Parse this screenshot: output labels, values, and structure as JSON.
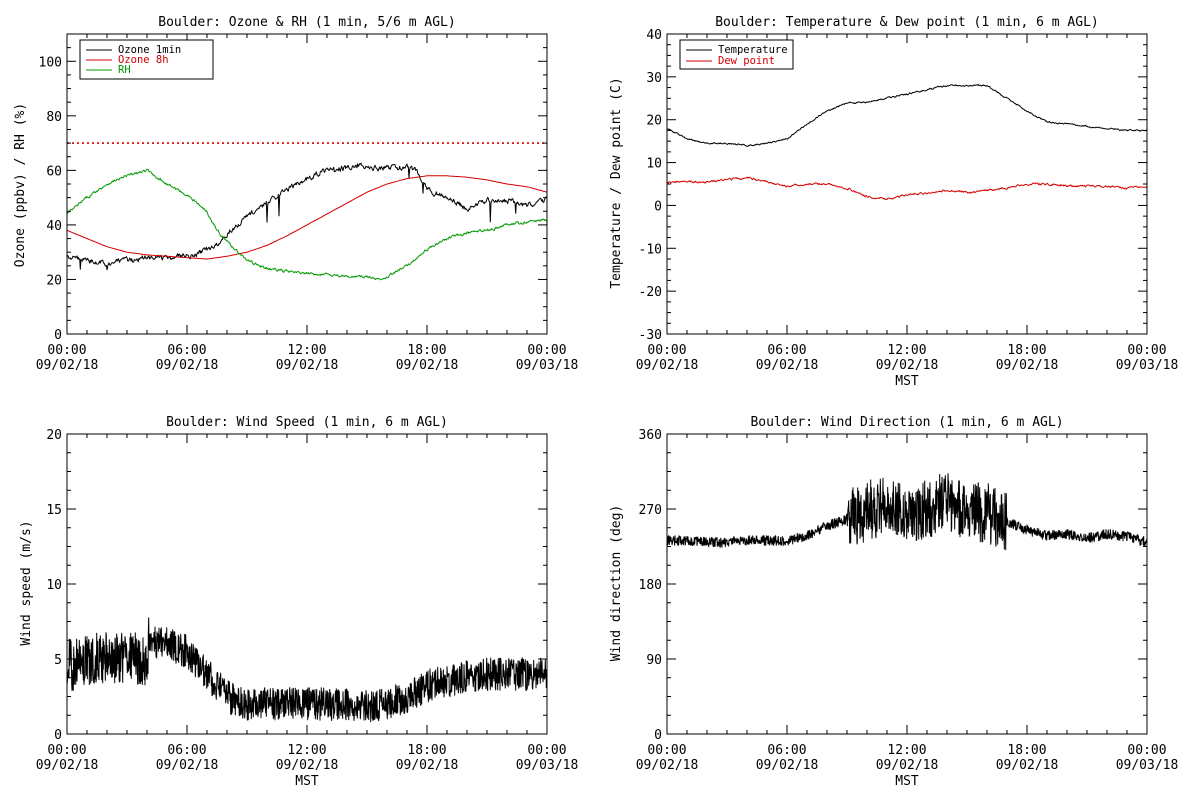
{
  "colors": {
    "black": "#000000",
    "red": "#d40000",
    "green": "#009900",
    "background": "#ffffff"
  },
  "x_ticks": [
    {
      "time": "00:00",
      "date": "09/02/18"
    },
    {
      "time": "06:00",
      "date": "09/02/18"
    },
    {
      "time": "12:00",
      "date": "09/02/18"
    },
    {
      "time": "18:00",
      "date": "09/02/18"
    },
    {
      "time": "00:00",
      "date": "09/03/18"
    }
  ],
  "chart_data": [
    {
      "type": "line",
      "title": "Boulder: Ozone & RH (1 min, 5/6 m AGL)",
      "xlabel": "",
      "ylabel": "Ozone (ppbv) / RH (%)",
      "x_units": "hours since 00:00 09/02/18 MST",
      "xlim": [
        0,
        24
      ],
      "ylim": [
        0,
        110
      ],
      "yticks": [
        0,
        20,
        40,
        60,
        80,
        100
      ],
      "legend": "top-left",
      "reference_line": {
        "y": 70,
        "style": "dotted",
        "color": "#d40000"
      },
      "series": [
        {
          "name": "Ozone 1min",
          "color": "#000000",
          "noise": 1.8,
          "spikes": true,
          "x": [
            0,
            1,
            2,
            3,
            4,
            5,
            6,
            6.5,
            7,
            7.5,
            8,
            9,
            10,
            11,
            12,
            13,
            14,
            14.5,
            15,
            16,
            17,
            17.5,
            18,
            19,
            20,
            21,
            22,
            23,
            24
          ],
          "y": [
            28,
            27,
            26,
            27,
            28,
            28,
            29,
            29,
            31,
            33,
            37,
            43,
            48,
            53,
            57,
            60,
            61,
            62,
            61,
            61,
            61,
            60,
            53,
            50,
            46,
            49,
            49,
            47,
            49
          ]
        },
        {
          "name": "Ozone 8h",
          "color": "#d40000",
          "noise": 0,
          "x": [
            0,
            1,
            2,
            3,
            4,
            5,
            6,
            7,
            8,
            9,
            10,
            11,
            12,
            13,
            14,
            15,
            16,
            17,
            18,
            19,
            20,
            21,
            22,
            23,
            24
          ],
          "y": [
            38,
            35,
            32,
            30,
            29,
            28.5,
            28,
            27.5,
            28.5,
            30,
            32.5,
            36,
            40,
            44,
            48,
            52,
            55,
            57,
            58,
            58,
            57.5,
            56.5,
            55,
            54,
            52
          ]
        },
        {
          "name": "RH",
          "color": "#009900",
          "noise": 0.9,
          "x": [
            0,
            1,
            2,
            3,
            4,
            5,
            6,
            7,
            7.5,
            8,
            9,
            10,
            11,
            12,
            13,
            14,
            15,
            15.5,
            16,
            17,
            18,
            19,
            20,
            21,
            22,
            23,
            24
          ],
          "y": [
            44,
            50,
            55,
            58,
            60,
            55,
            51,
            45,
            38,
            34,
            27,
            24,
            23,
            22,
            22,
            21,
            21,
            20,
            21,
            25,
            31,
            35,
            37,
            38,
            40,
            41,
            42
          ]
        }
      ]
    },
    {
      "type": "line",
      "title": "Boulder: Temperature & Dew point (1 min, 6 m AGL)",
      "xlabel": "MST",
      "ylabel": "Temperature / Dew point (C)",
      "x_units": "hours since 00:00 09/02/18 MST",
      "xlim": [
        0,
        24
      ],
      "ylim": [
        -30,
        40
      ],
      "yticks": [
        -30,
        -20,
        -10,
        0,
        10,
        20,
        30,
        40
      ],
      "legend": "top-left",
      "series": [
        {
          "name": "Temperature",
          "color": "#000000",
          "noise": 0.35,
          "x": [
            0,
            1,
            2,
            3,
            4,
            5,
            6,
            7,
            8,
            9,
            10,
            11,
            12,
            13,
            14,
            15,
            16,
            17,
            18,
            19,
            20,
            21,
            22,
            23,
            24
          ],
          "y": [
            18,
            15.5,
            14.5,
            14.5,
            14,
            14.5,
            15.5,
            19,
            22,
            24,
            24,
            25,
            26,
            27,
            28,
            28,
            28,
            25,
            22,
            19.5,
            19,
            18.5,
            18,
            17.5,
            17.5
          ]
        },
        {
          "name": "Dew point",
          "color": "#d40000",
          "noise": 0.45,
          "x": [
            0,
            1,
            2,
            3,
            4,
            5,
            6,
            7,
            8,
            9,
            10,
            11,
            12,
            13,
            14,
            15,
            16,
            17,
            18,
            19,
            20,
            21,
            22,
            23,
            24
          ],
          "y": [
            5.5,
            5.5,
            5.5,
            6,
            6.5,
            5.5,
            4.5,
            5,
            5,
            4,
            2,
            1.5,
            2.5,
            3,
            3.5,
            3,
            3.5,
            4,
            5,
            5,
            4.5,
            4.5,
            4.5,
            4,
            4.5
          ]
        }
      ]
    },
    {
      "type": "line",
      "title": "Boulder: Wind Speed (1 min, 6 m AGL)",
      "xlabel": "MST",
      "ylabel": "Wind speed (m/s)",
      "x_units": "hours since 00:00 09/02/18 MST",
      "xlim": [
        0,
        24
      ],
      "ylim": [
        0,
        20
      ],
      "yticks": [
        0,
        5,
        10,
        15,
        20
      ],
      "legend": "none",
      "series": [
        {
          "color": "#000000",
          "noise": 1.1,
          "dense": true,
          "x": [
            0,
            1,
            2,
            3,
            4,
            4.1,
            5,
            6,
            7,
            8,
            9,
            10,
            11,
            12,
            13,
            14,
            15,
            16,
            17,
            18,
            19,
            20,
            21,
            22,
            23,
            24
          ],
          "y": [
            4.5,
            5,
            5,
            5,
            5,
            6.2,
            6,
            5.5,
            4,
            2.5,
            2,
            2,
            2,
            2,
            2,
            2,
            1.8,
            2,
            2.5,
            3.2,
            3.5,
            3.8,
            4,
            4,
            4,
            4.2
          ]
        }
      ]
    },
    {
      "type": "line",
      "title": "Boulder: Wind Direction (1 min, 6 m AGL)",
      "xlabel": "MST",
      "ylabel": "Wind direction (deg)",
      "x_units": "hours since 00:00 09/02/18 MST",
      "xlim": [
        0,
        24
      ],
      "ylim": [
        0,
        360
      ],
      "yticks": [
        0,
        90,
        180,
        270,
        360
      ],
      "legend": "none",
      "series": [
        {
          "color": "#000000",
          "noise": 6,
          "dense": true,
          "x": [
            0,
            1,
            2,
            3,
            4,
            5,
            6,
            7,
            8,
            9,
            10,
            11,
            12,
            13,
            14,
            15,
            16,
            17,
            18,
            19,
            20,
            21,
            22,
            23,
            24
          ],
          "y": [
            232,
            232,
            230,
            230,
            232,
            232,
            232,
            238,
            250,
            258,
            268,
            275,
            265,
            270,
            280,
            268,
            265,
            255,
            245,
            238,
            240,
            235,
            240,
            237,
            230
          ]
        }
      ]
    }
  ]
}
